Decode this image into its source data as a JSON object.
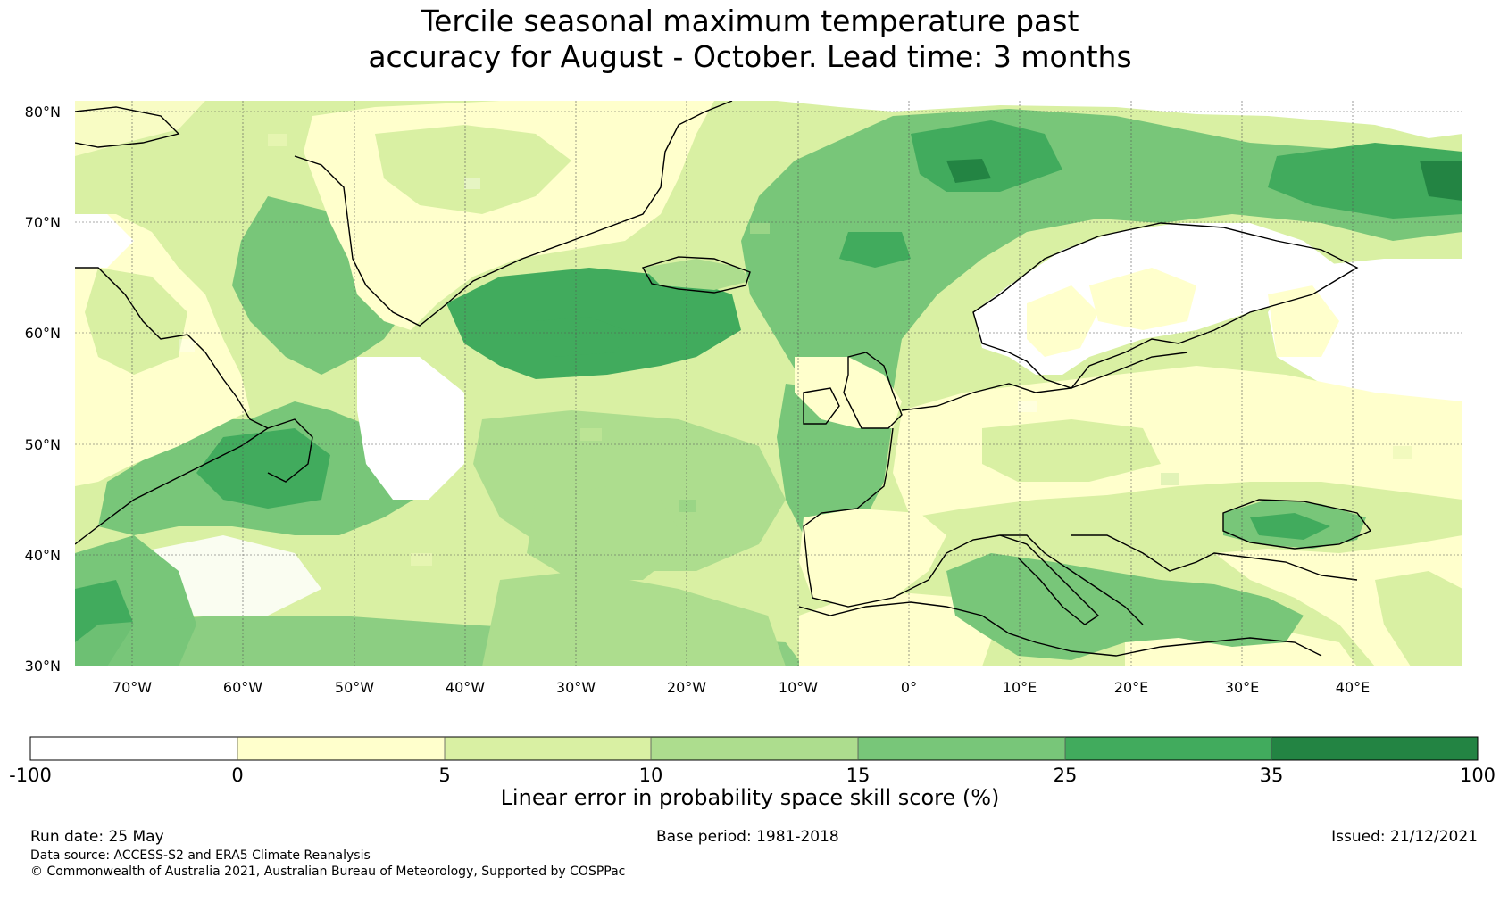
{
  "title": {
    "line1": "Tercile seasonal maximum temperature past",
    "line2": "accuracy for August - October. Lead time: 3 months"
  },
  "map": {
    "lat_labels": [
      "80°N",
      "70°N",
      "60°N",
      "50°N",
      "40°N",
      "30°N"
    ],
    "lon_labels": [
      "70°W",
      "60°W",
      "50°W",
      "40°W",
      "30°W",
      "20°W",
      "10°W",
      "0°",
      "10°E",
      "20°E",
      "30°E",
      "40°E"
    ],
    "extent": {
      "lon_min": -75,
      "lon_max": 50,
      "lat_min": 30,
      "lat_max": 81
    }
  },
  "legend": {
    "tick_labels": [
      "-100",
      "0",
      "5",
      "10",
      "15",
      "25",
      "35",
      "100"
    ],
    "bins": [
      {
        "from": -100,
        "to": 0,
        "color": "#ffffff"
      },
      {
        "from": 0,
        "to": 5,
        "color": "#ffffcc"
      },
      {
        "from": 5,
        "to": 10,
        "color": "#d9f0a3"
      },
      {
        "from": 10,
        "to": 15,
        "color": "#addd8e"
      },
      {
        "from": 15,
        "to": 25,
        "color": "#78c679"
      },
      {
        "from": 25,
        "to": 35,
        "color": "#41ab5d"
      },
      {
        "from": 35,
        "to": 100,
        "color": "#238443"
      }
    ],
    "title": "Linear error in probability space skill score (%)"
  },
  "footer": {
    "run_date": "Run date: 25 May",
    "base_period": "Base period: 1981-2018",
    "issued": "Issued: 21/12/2021",
    "data_source": "Data source: ACCESS-S2 and ERA5 Climate Reanalysis",
    "copyright": "© Commonwealth of Australia 2021, Australian Bureau of Meteorology, Supported by COSPPac"
  }
}
